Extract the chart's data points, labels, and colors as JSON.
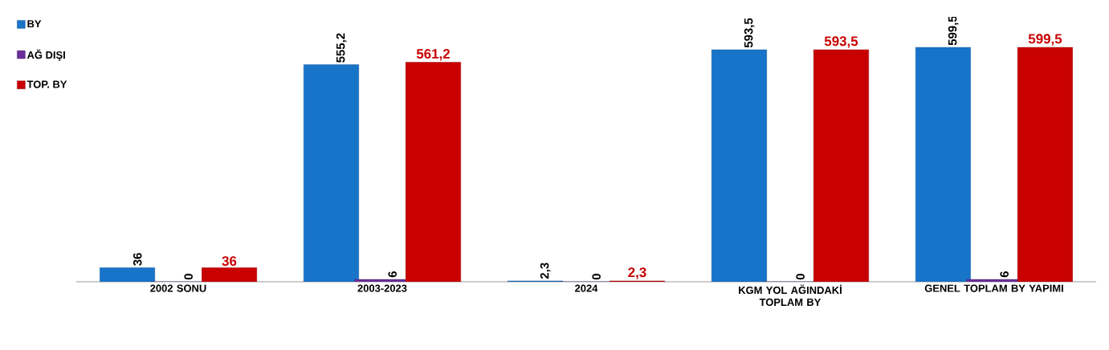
{
  "chart_data": {
    "type": "bar",
    "categories": [
      "2002 SONU",
      "2003-2023",
      "2024",
      "KGM YOL AĞINDAKİ TOPLAM BY",
      "GENEL TOPLAM BY YAPIMI"
    ],
    "series": [
      {
        "name": "BY",
        "color": "#1874c8",
        "values": [
          36,
          555.2,
          2.3,
          593.5,
          599.5
        ],
        "value_labels": [
          "36",
          "555,2",
          "2,3",
          "593,5",
          "599,5"
        ]
      },
      {
        "name": "AĞ DIŞI",
        "color": "#6a2f9a",
        "values": [
          0,
          6,
          0,
          0,
          6
        ],
        "value_labels": [
          "0",
          "6",
          "0",
          "0",
          "6"
        ]
      },
      {
        "name": "TOP. BY",
        "color": "#c80000",
        "values": [
          36,
          561.2,
          2.3,
          593.5,
          599.5
        ],
        "value_labels": [
          "36",
          "561,2",
          "2,3",
          "593,5",
          "599,5"
        ]
      }
    ],
    "legend": "left",
    "grid": false
  }
}
